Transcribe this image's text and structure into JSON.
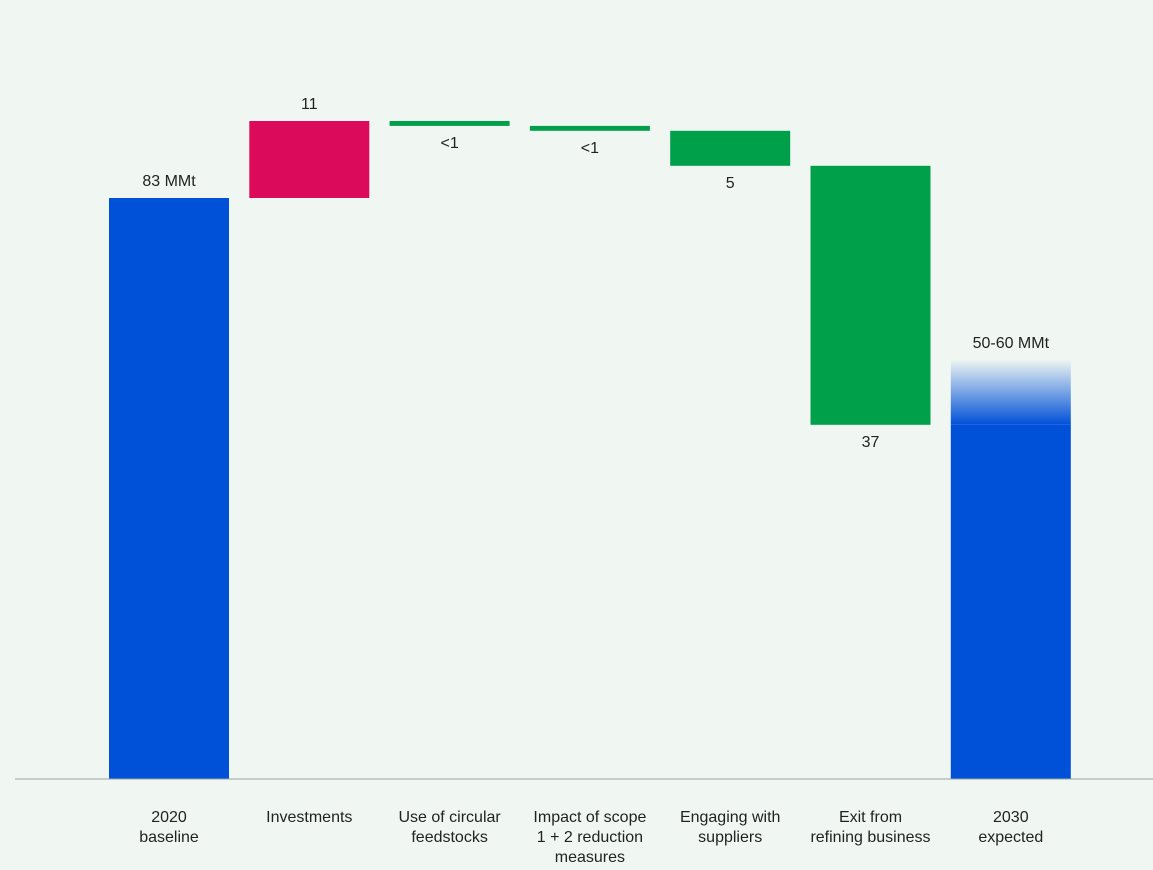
{
  "chart_data": {
    "type": "bar",
    "subtype": "waterfall",
    "title": "",
    "xlabel": "",
    "ylabel": "",
    "ylim": [
      0,
      95
    ],
    "grid": false,
    "legend": "none",
    "colors": {
      "total": "#0050d8",
      "increase": "#dc0a5a",
      "decrease": "#00a04a",
      "axis": "#9aa3a0",
      "text": "#222222"
    },
    "bars": [
      {
        "category": [
          "2020",
          "baseline"
        ],
        "kind": "total",
        "start": 0,
        "end": 83,
        "label": "83 MMt"
      },
      {
        "category": [
          "Investments"
        ],
        "kind": "increase",
        "start": 83,
        "end": 94,
        "label": "11"
      },
      {
        "category": [
          "Use of circular",
          "feedstocks"
        ],
        "kind": "decrease",
        "start": 94,
        "end": 93.3,
        "label": "<1"
      },
      {
        "category": [
          "Impact of scope",
          "1 + 2 reduction",
          "measures"
        ],
        "kind": "decrease",
        "start": 93.3,
        "end": 92.6,
        "label": "<1"
      },
      {
        "category": [
          "Engaging with",
          "suppliers"
        ],
        "kind": "decrease",
        "start": 92.6,
        "end": 87.6,
        "label": "5"
      },
      {
        "category": [
          "Exit from",
          "refining business"
        ],
        "kind": "decrease",
        "start": 87.6,
        "end": 50.6,
        "label": "37"
      },
      {
        "category": [
          "2030",
          "expected"
        ],
        "kind": "total-range",
        "start": 0,
        "end": 50.6,
        "range_top": 60,
        "label": "50-60 MMt"
      }
    ]
  }
}
